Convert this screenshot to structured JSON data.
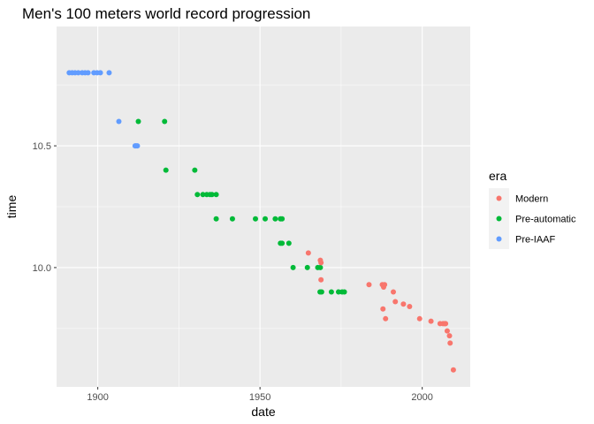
{
  "chart_data": {
    "type": "scatter",
    "title": "Men's 100 meters world record progression",
    "xlabel": "date",
    "ylabel": "time",
    "xlim": [
      1887.3,
      2014.8
    ],
    "ylim": [
      9.51,
      10.99
    ],
    "x_ticks": [
      1900,
      1950,
      2000
    ],
    "x_tick_labels": [
      "1900",
      "1950",
      "2000"
    ],
    "x_minor_ticks": [
      1925,
      1975
    ],
    "y_ticks": [
      10.0,
      10.5
    ],
    "y_tick_labels": [
      "10.0",
      "10.5"
    ],
    "y_minor_ticks": [
      9.75,
      10.25,
      10.75
    ],
    "grid": true,
    "legend": {
      "title": "era",
      "position": "right",
      "entries": [
        "Modern",
        "Pre-automatic",
        "Pre-IAAF"
      ]
    },
    "colors": {
      "Modern": "#F8766D",
      "Pre-automatic": "#00BA38",
      "Pre-IAAF": "#619CFF",
      "panel": "#EBEBEB",
      "grid": "#FFFFFF"
    },
    "series": [
      {
        "name": "Pre-IAAF",
        "points": [
          [
            1891.2,
            10.8
          ],
          [
            1892.1,
            10.8
          ],
          [
            1893.0,
            10.8
          ],
          [
            1894.0,
            10.8
          ],
          [
            1895.2,
            10.8
          ],
          [
            1896.1,
            10.8
          ],
          [
            1897.0,
            10.8
          ],
          [
            1898.8,
            10.8
          ],
          [
            1899.8,
            10.8
          ],
          [
            1900.8,
            10.8
          ],
          [
            1903.5,
            10.8
          ],
          [
            1906.5,
            10.6
          ],
          [
            1911.5,
            10.5
          ],
          [
            1911.8,
            10.5
          ],
          [
            1912.2,
            10.5
          ]
        ]
      },
      {
        "name": "Pre-automatic",
        "points": [
          [
            1912.5,
            10.6
          ],
          [
            1920.6,
            10.6
          ],
          [
            1921.0,
            10.4
          ],
          [
            1929.9,
            10.4
          ],
          [
            1930.7,
            10.3
          ],
          [
            1932.4,
            10.3
          ],
          [
            1933.6,
            10.3
          ],
          [
            1934.6,
            10.3
          ],
          [
            1935.2,
            10.3
          ],
          [
            1936.5,
            10.3
          ],
          [
            1936.5,
            10.2
          ],
          [
            1941.5,
            10.2
          ],
          [
            1948.6,
            10.2
          ],
          [
            1951.6,
            10.2
          ],
          [
            1954.7,
            10.2
          ],
          [
            1956.3,
            10.2
          ],
          [
            1956.8,
            10.2
          ],
          [
            1956.3,
            10.1
          ],
          [
            1956.8,
            10.1
          ],
          [
            1958.9,
            10.1
          ],
          [
            1960.2,
            10.0
          ],
          [
            1964.6,
            10.0
          ],
          [
            1967.8,
            10.0
          ],
          [
            1968.6,
            10.0
          ],
          [
            1968.5,
            9.9
          ],
          [
            1969.0,
            9.9
          ],
          [
            1972.0,
            9.9
          ],
          [
            1974.2,
            9.9
          ],
          [
            1975.3,
            9.9
          ],
          [
            1976.0,
            9.9
          ]
        ]
      },
      {
        "name": "Modern",
        "points": [
          [
            1964.9,
            10.06
          ],
          [
            1968.6,
            10.03
          ],
          [
            1968.8,
            10.02
          ],
          [
            1968.8,
            9.95
          ],
          [
            1983.6,
            9.93
          ],
          [
            1987.7,
            9.93
          ],
          [
            1988.1,
            9.92
          ],
          [
            1988.4,
            9.93
          ],
          [
            1987.9,
            9.83
          ],
          [
            1988.7,
            9.79
          ],
          [
            1991.1,
            9.9
          ],
          [
            1991.7,
            9.86
          ],
          [
            1994.2,
            9.85
          ],
          [
            1996.1,
            9.84
          ],
          [
            1999.2,
            9.79
          ],
          [
            2002.7,
            9.78
          ],
          [
            2005.5,
            9.77
          ],
          [
            2006.4,
            9.77
          ],
          [
            2006.9,
            9.77
          ],
          [
            2007.2,
            9.77
          ],
          [
            2007.7,
            9.74
          ],
          [
            2008.4,
            9.72
          ],
          [
            2008.6,
            9.69
          ],
          [
            2009.6,
            9.58
          ]
        ]
      }
    ]
  }
}
